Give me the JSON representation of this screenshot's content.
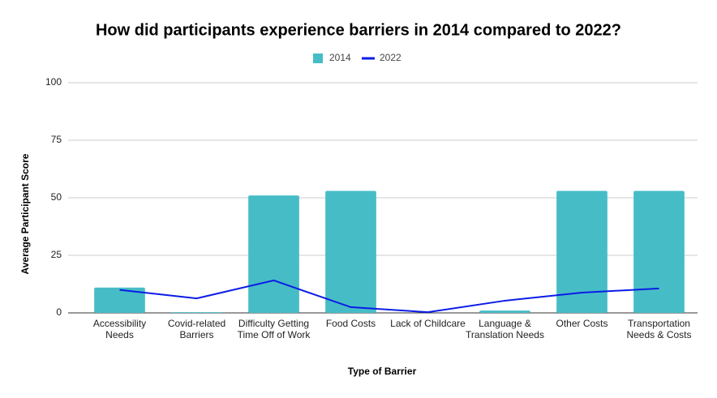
{
  "chart_data": {
    "type": "bar-line",
    "title": "How did participants experience barriers in 2014 compared to 2022?",
    "x_label": "Type of Barrier",
    "y_label": "Average Participant Score",
    "categories": [
      "Accessibility Needs",
      "Covid-related Barriers",
      "Difficulty Getting Time Off of Work",
      "Food Costs",
      "Lack of Childcare",
      "Language & Translation Needs",
      "Other Costs",
      "Transportation Needs & Costs"
    ],
    "series": [
      {
        "name": "2014",
        "type": "bar",
        "color": "#46bdc6",
        "values": [
          11,
          0.3,
          51,
          53,
          0,
          1,
          53,
          53
        ]
      },
      {
        "name": "2022",
        "type": "line",
        "color": "#0b1ce6",
        "values": [
          10,
          6.3,
          14.1,
          2.5,
          0.3,
          5.3,
          8.8,
          10.6
        ]
      }
    ],
    "ylim": [
      0,
      100
    ],
    "yticks": [
      0,
      25,
      50,
      75,
      100
    ],
    "grid": true
  }
}
